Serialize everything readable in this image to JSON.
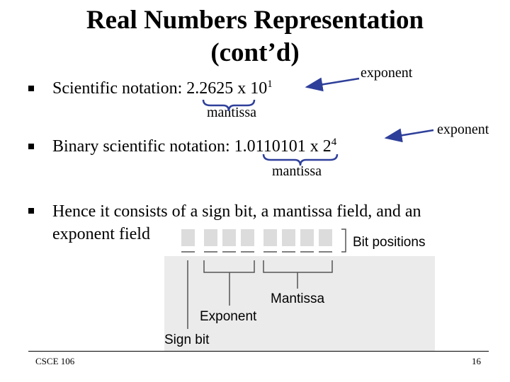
{
  "title": {
    "line1": "Real Numbers Representation",
    "line2": "(cont’d)"
  },
  "bullets": [
    {
      "prefix": "Scientific notation: ",
      "mantissa": "2.2625",
      "middle": " x 10",
      "exponent": "1",
      "mantissa_label": "mantissa",
      "exponent_label": "exponent"
    },
    {
      "prefix": "Binary scientific notation: ",
      "mantissa": "1.0110101",
      "middle": " x 2",
      "exponent": "4",
      "mantissa_label": "mantissa",
      "exponent_label": "exponent"
    },
    {
      "line1": "Hence it consists of a sign bit, a mantissa field, and an",
      "line2": "exponent field"
    }
  ],
  "diagram": {
    "bit_positions_label": "Bit positions",
    "mantissa_label": "Mantissa",
    "exponent_label": "Exponent",
    "sign_bit_label": "Sign bit"
  },
  "footer": {
    "course": "CSCE 106",
    "page": "16"
  }
}
